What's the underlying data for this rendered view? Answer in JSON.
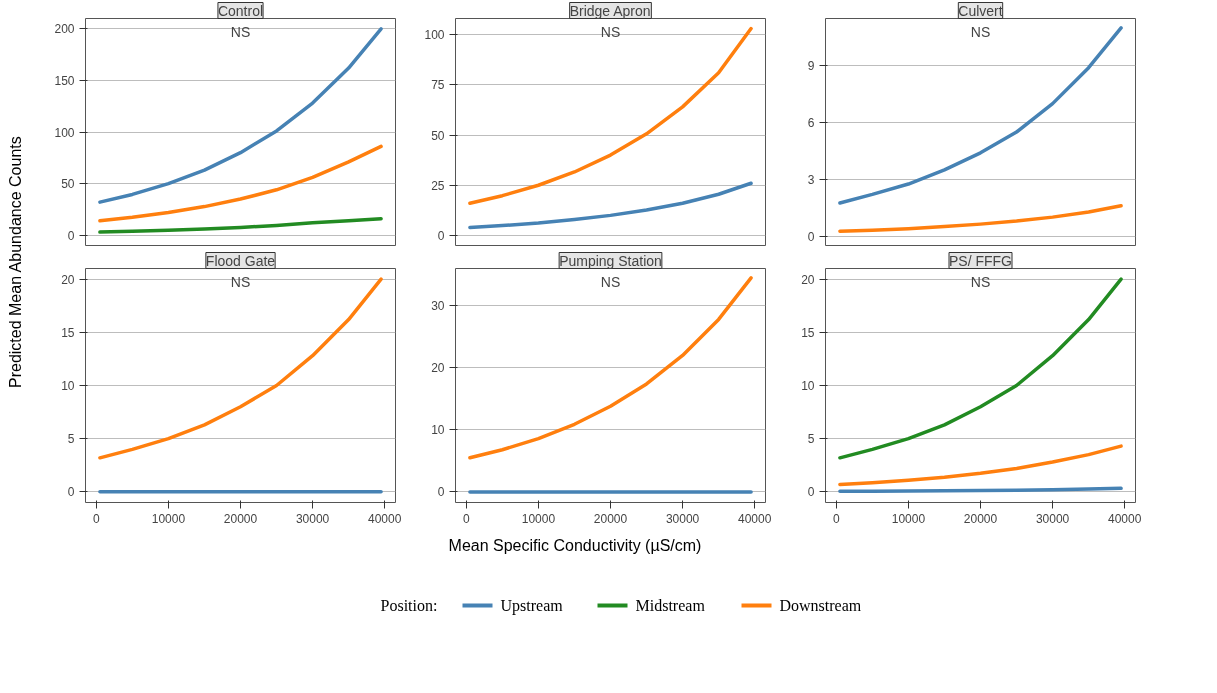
{
  "chart_data": [
    {
      "type": "line",
      "title": "Control",
      "ylabel": "Predicted Mean Abundance Counts",
      "legend": "bottom",
      "legend_title": "Position:",
      "annotations": [
        "NS"
      ],
      "x": [
        500,
        5000,
        10000,
        15000,
        20000,
        25000,
        30000,
        35000,
        39500
      ],
      "xlim": [
        -1500,
        41500
      ],
      "xticks": [
        0,
        10000,
        20000,
        30000,
        40000
      ],
      "ylim": [
        -10,
        210
      ],
      "yticks": [
        0,
        50,
        100,
        150,
        200
      ],
      "grid": "y",
      "tick_labels": "y",
      "series": [
        {
          "name": "Upstream",
          "color": "#4682b4",
          "values": [
            32,
            39.5,
            50,
            63,
            80,
            101,
            128,
            162,
            200
          ]
        },
        {
          "name": "Midstream",
          "color": "#228b22",
          "values": [
            3,
            3.7,
            4.7,
            6,
            7.5,
            9.5,
            12,
            14,
            16
          ]
        },
        {
          "name": "Downstream",
          "color": "#ff7f0e",
          "values": [
            14,
            17.3,
            22,
            27.7,
            35,
            44,
            56,
            71,
            86
          ]
        }
      ]
    },
    {
      "type": "line",
      "title": "Bridge Apron",
      "annotations": [
        "NS"
      ],
      "x": [
        500,
        5000,
        10000,
        15000,
        20000,
        25000,
        30000,
        35000,
        39500
      ],
      "xlim": [
        -1500,
        41500
      ],
      "xticks": [
        0,
        10000,
        20000,
        30000,
        40000
      ],
      "ylim": [
        -5,
        108
      ],
      "yticks": [
        0,
        25,
        50,
        75,
        100
      ],
      "grid": "y",
      "tick_labels": "y",
      "series": [
        {
          "name": "Upstream",
          "color": "#4682b4",
          "values": [
            4,
            4.9,
            6.2,
            7.9,
            10,
            12.7,
            16,
            20.5,
            26
          ]
        },
        {
          "name": "Downstream",
          "color": "#ff7f0e",
          "values": [
            16,
            19.8,
            25,
            31.6,
            40,
            50.6,
            64,
            81,
            103
          ]
        }
      ]
    },
    {
      "type": "line",
      "title": "Culvert",
      "annotations": [
        "NS"
      ],
      "x": [
        500,
        5000,
        10000,
        15000,
        20000,
        25000,
        30000,
        35000,
        39500
      ],
      "xlim": [
        -1500,
        41500
      ],
      "xticks": [
        0,
        10000,
        20000,
        30000,
        40000
      ],
      "ylim": [
        -0.5,
        11.5
      ],
      "yticks": [
        0,
        3,
        6,
        9
      ],
      "grid": "y",
      "tick_labels": "y",
      "series": [
        {
          "name": "Upstream",
          "color": "#4682b4",
          "values": [
            1.75,
            2.2,
            2.75,
            3.5,
            4.4,
            5.5,
            7,
            8.9,
            11
          ]
        },
        {
          "name": "Downstream",
          "color": "#ff7f0e",
          "values": [
            0.25,
            0.31,
            0.39,
            0.5,
            0.63,
            0.79,
            1,
            1.27,
            1.6
          ]
        }
      ]
    },
    {
      "type": "line",
      "title": "Flood Gate",
      "annotations": [
        "NS"
      ],
      "x": [
        500,
        5000,
        10000,
        15000,
        20000,
        25000,
        30000,
        35000,
        39500
      ],
      "xlim": [
        -1500,
        41500
      ],
      "xticks": [
        0,
        10000,
        20000,
        30000,
        40000
      ],
      "ylim": [
        -1,
        21
      ],
      "yticks": [
        0,
        5,
        10,
        15,
        20
      ],
      "grid": "y",
      "series": [
        {
          "name": "Upstream",
          "color": "#4682b4",
          "values": [
            0,
            0,
            0,
            0,
            0,
            0,
            0,
            0,
            0
          ]
        },
        {
          "name": "Downstream",
          "color": "#ff7f0e",
          "values": [
            3.2,
            4,
            5,
            6.3,
            8,
            10,
            12.8,
            16.2,
            20
          ]
        }
      ]
    },
    {
      "type": "line",
      "title": "Pumping Station",
      "xlabel": "Mean Specific Conductivity (µS/cm)",
      "annotations": [
        "NS"
      ],
      "x": [
        500,
        5000,
        10000,
        15000,
        20000,
        25000,
        30000,
        35000,
        39500
      ],
      "xlim": [
        -1500,
        41500
      ],
      "xticks": [
        0,
        10000,
        20000,
        30000,
        40000
      ],
      "ylim": [
        -1.7,
        36
      ],
      "yticks": [
        0,
        10,
        20,
        30
      ],
      "grid": "y",
      "series": [
        {
          "name": "Upstream",
          "color": "#4682b4",
          "values": [
            0,
            0,
            0,
            0,
            0,
            0,
            0,
            0,
            0
          ]
        },
        {
          "name": "Downstream",
          "color": "#ff7f0e",
          "values": [
            5.5,
            6.8,
            8.6,
            10.9,
            13.8,
            17.4,
            22,
            27.8,
            34.5
          ]
        }
      ]
    },
    {
      "type": "line",
      "title": "PS/ FFFG",
      "annotations": [
        "NS"
      ],
      "x": [
        500,
        5000,
        10000,
        15000,
        20000,
        25000,
        30000,
        35000,
        39500
      ],
      "xlim": [
        -1500,
        41500
      ],
      "xticks": [
        0,
        10000,
        20000,
        30000,
        40000
      ],
      "ylim": [
        -1,
        21
      ],
      "yticks": [
        0,
        5,
        10,
        15,
        20
      ],
      "grid": "y",
      "series": [
        {
          "name": "Upstream",
          "color": "#4682b4",
          "values": [
            0.05,
            0.06,
            0.08,
            0.1,
            0.13,
            0.16,
            0.2,
            0.26,
            0.33
          ]
        },
        {
          "name": "Midstream",
          "color": "#228b22",
          "values": [
            3.2,
            4,
            5,
            6.3,
            8,
            10,
            12.8,
            16.2,
            20
          ]
        },
        {
          "name": "Downstream",
          "color": "#ff7f0e",
          "values": [
            0.7,
            0.86,
            1.1,
            1.38,
            1.75,
            2.2,
            2.8,
            3.5,
            4.3
          ]
        }
      ]
    }
  ]
}
